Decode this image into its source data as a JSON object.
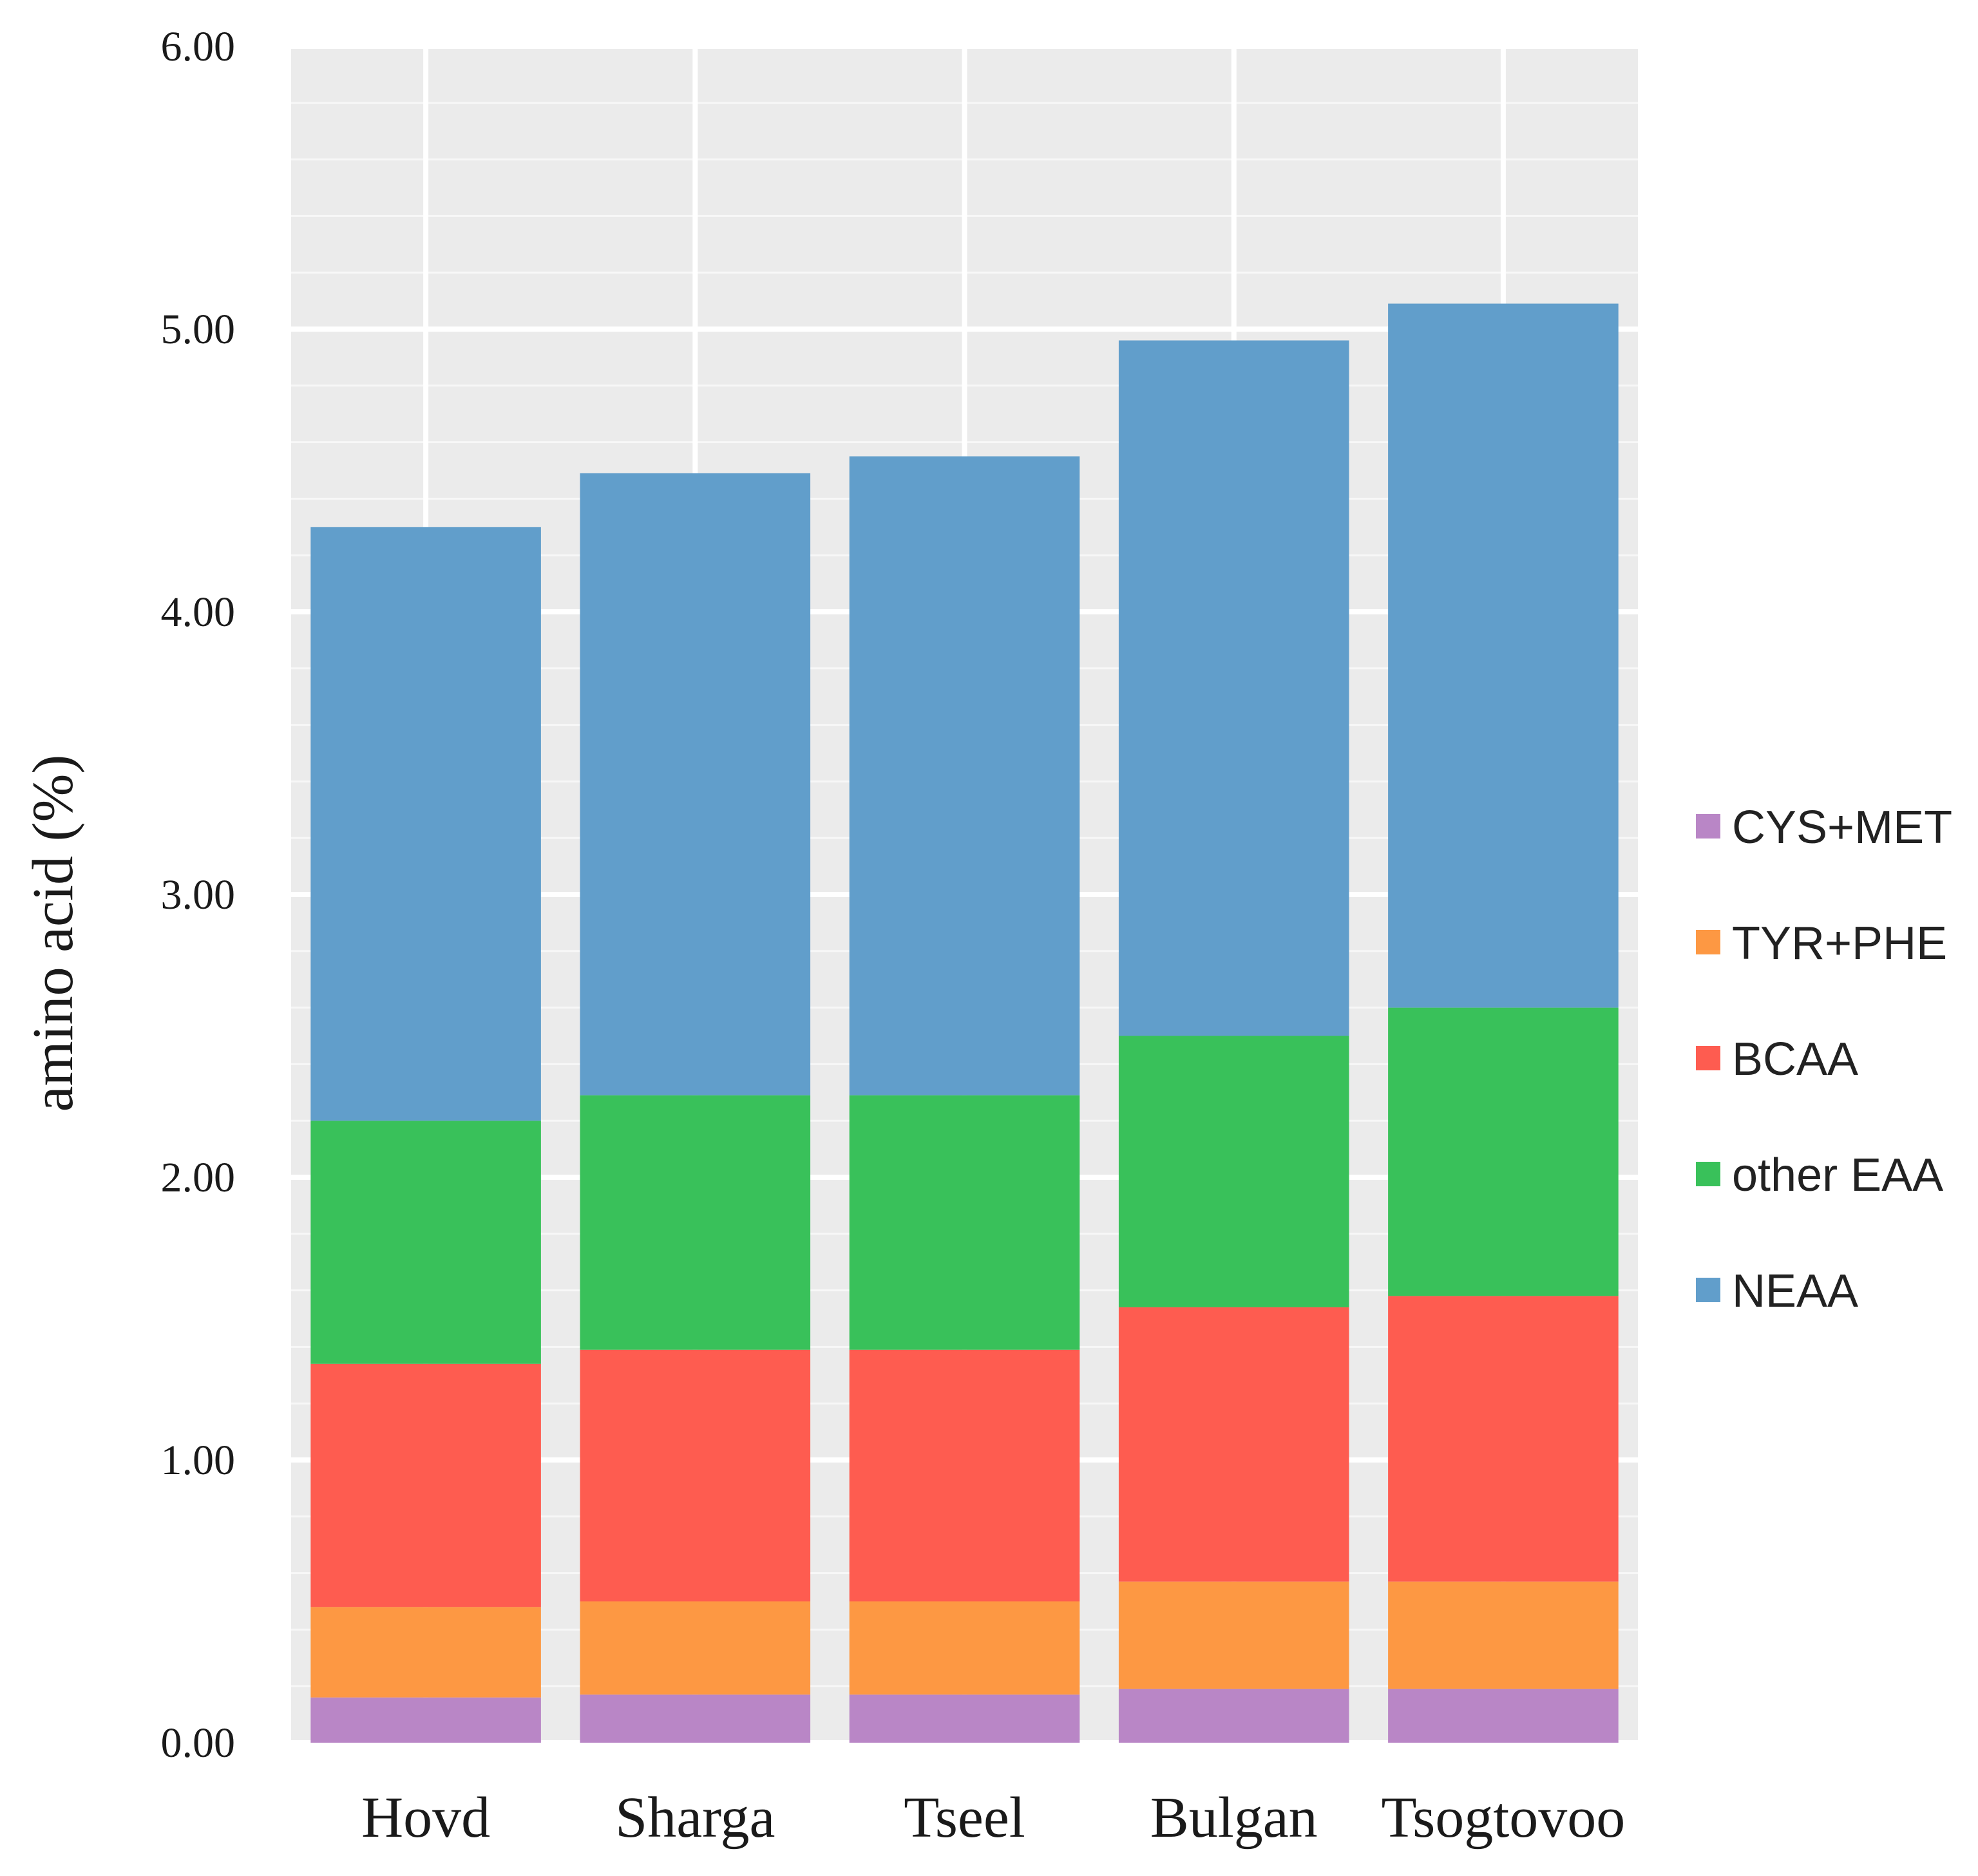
{
  "chart_data": {
    "type": "bar",
    "stacked": true,
    "title": "",
    "xlabel": "",
    "ylabel": "amino acid (%)",
    "ylim": [
      0,
      6
    ],
    "yticks": [
      "0.00",
      "1.00",
      "2.00",
      "3.00",
      "4.00",
      "5.00",
      "6.00"
    ],
    "grid": true,
    "legend_position": "right",
    "categories": [
      "Hovd",
      "Sharga",
      "Tseel",
      "Bulgan",
      "Tsogtovoo"
    ],
    "series": [
      {
        "name": "CYS+MET",
        "color": "#B986C6",
        "values": [
          0.16,
          0.17,
          0.17,
          0.19,
          0.19
        ]
      },
      {
        "name": "TYR+PHE",
        "color": "#FD9843",
        "values": [
          0.32,
          0.33,
          0.33,
          0.38,
          0.38
        ]
      },
      {
        "name": "BCAA",
        "color": "#FE5C50",
        "values": [
          0.86,
          0.89,
          0.89,
          0.97,
          1.01
        ]
      },
      {
        "name": "other EAA",
        "color": "#39C15A",
        "values": [
          0.86,
          0.9,
          0.9,
          0.96,
          1.02
        ]
      },
      {
        "name": "NEAA",
        "color": "#619ECB",
        "values": [
          2.1,
          2.2,
          2.26,
          2.46,
          2.49
        ]
      }
    ],
    "legend_order": [
      "CYS+MET",
      "TYR+PHE",
      "BCAA",
      "other EAA",
      "NEAA"
    ],
    "panel_background": "#EBEBEB"
  }
}
